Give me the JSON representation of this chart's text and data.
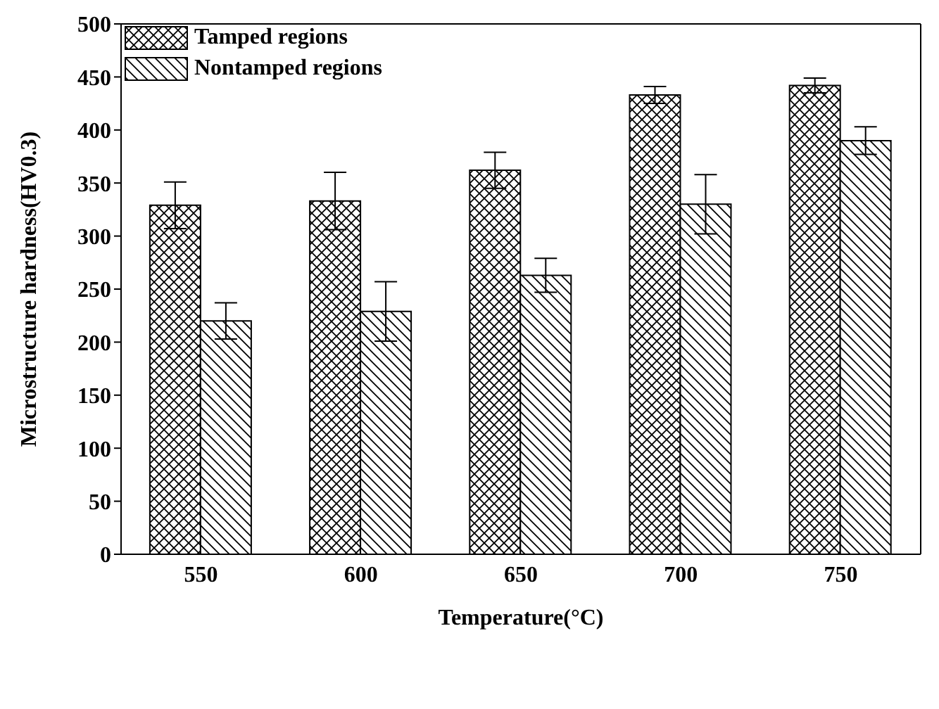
{
  "chart_data": {
    "type": "bar",
    "xlabel": "Temperature(°C)",
    "ylabel": "Microstructure hardness(HV0.3)",
    "categories": [
      "550",
      "600",
      "650",
      "700",
      "750"
    ],
    "series": [
      {
        "name": "Tamped regions",
        "color": "#000000",
        "values": [
          329,
          333,
          362,
          433,
          442
        ],
        "errors": [
          22,
          27,
          17,
          8,
          7
        ]
      },
      {
        "name": "Nontamped regions",
        "color": "#000000",
        "values": [
          220,
          229,
          263,
          330,
          390
        ],
        "errors": [
          17,
          28,
          16,
          28,
          13
        ]
      }
    ],
    "ylim": [
      0,
      500
    ],
    "yticks": [
      0,
      50,
      100,
      150,
      200,
      250,
      300,
      350,
      400,
      450,
      500
    ],
    "grid": false,
    "legend": "top left"
  }
}
